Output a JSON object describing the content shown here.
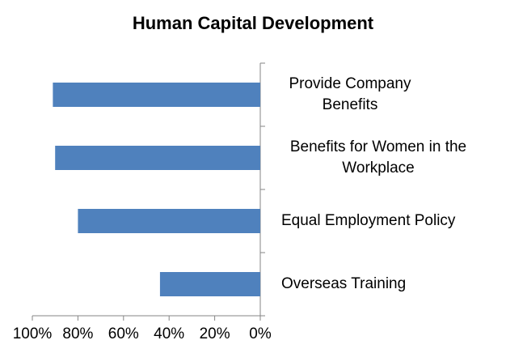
{
  "chart_data": {
    "type": "bar",
    "orientation": "horizontal",
    "title": "Human Capital Development",
    "categories": [
      "Provide Company Benefits",
      "Benefits for Women in the Workplace",
      "Equal Employment Policy",
      "Overseas Training"
    ],
    "values": [
      91,
      90,
      80,
      44
    ],
    "color": "#4f81bd",
    "xlim": [
      100,
      0
    ],
    "xticks": [
      {
        "value": 100,
        "label": "100%"
      },
      {
        "value": 80,
        "label": "80%"
      },
      {
        "value": 60,
        "label": "60%"
      },
      {
        "value": 40,
        "label": "40%"
      },
      {
        "value": 20,
        "label": "20%"
      },
      {
        "value": 0,
        "label": "0%"
      }
    ],
    "grid": false
  }
}
